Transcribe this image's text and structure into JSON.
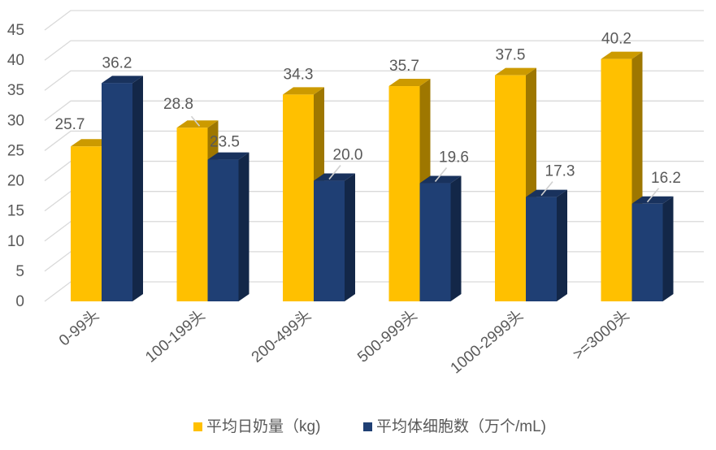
{
  "chart_data": {
    "type": "bar",
    "title": "",
    "xlabel": "",
    "ylabel": "",
    "ylim": [
      0,
      45
    ],
    "yticks": [
      0,
      5,
      10,
      15,
      20,
      25,
      30,
      35,
      40,
      45
    ],
    "grid": true,
    "legend_position": "bottom",
    "categories": [
      "0-99头",
      "100-199头",
      "200-499头",
      "500-999头",
      "1000-2999头",
      ">=3000头"
    ],
    "series": [
      {
        "name": "平均日奶量（kg)",
        "color": "#FFC000",
        "values": [
          25.7,
          28.8,
          34.3,
          35.7,
          37.5,
          40.2
        ]
      },
      {
        "name": "平均体细胞数（万个/mL)",
        "color": "#1F3F74",
        "values": [
          36.2,
          23.5,
          20.0,
          19.6,
          17.3,
          16.2
        ]
      }
    ]
  }
}
